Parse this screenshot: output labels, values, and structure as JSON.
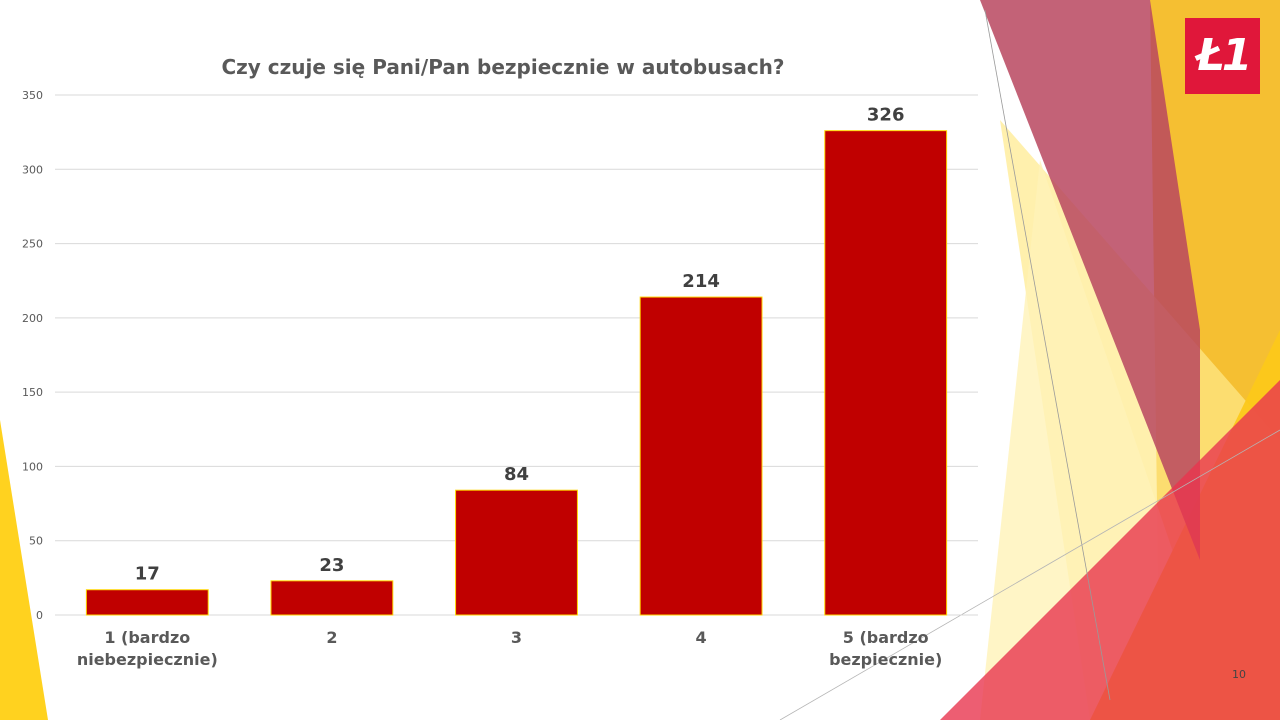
{
  "slide": {
    "logo_text": "Ł1",
    "page_number": "10"
  },
  "colors": {
    "bar": "#c00000",
    "bar_border": "#ffd500",
    "gridline": "#d9d9d9",
    "logo_bg": "#e0173a"
  },
  "chart_data": {
    "type": "bar",
    "title": "Czy czuje się Pani/Pan bezpiecznie w autobusach?",
    "categories": [
      [
        "1 (bardzo",
        "niebezpiecznie)"
      ],
      [
        "2"
      ],
      [
        "3"
      ],
      [
        "4"
      ],
      [
        "5 (bardzo",
        "bezpiecznie)"
      ]
    ],
    "values": [
      17,
      23,
      84,
      214,
      326
    ],
    "ylim": [
      0,
      350
    ],
    "yticks": [
      0,
      50,
      100,
      150,
      200,
      250,
      300,
      350
    ],
    "grid": true,
    "data_labels": true,
    "legend": "none"
  }
}
